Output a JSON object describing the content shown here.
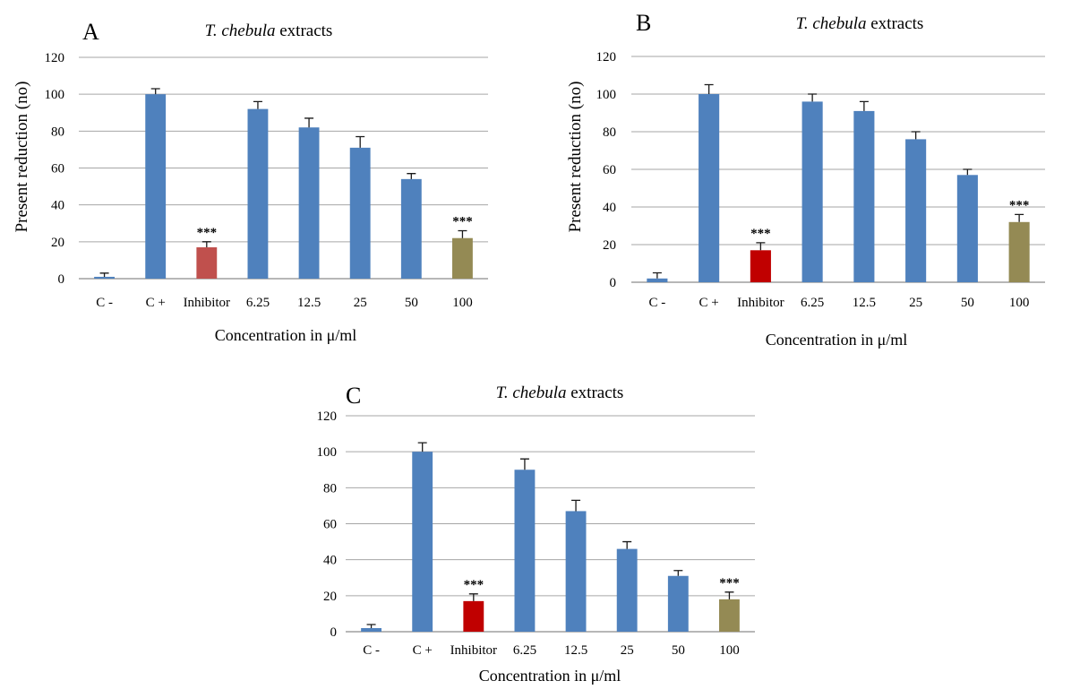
{
  "chart_data": [
    {
      "panel": "A",
      "type": "bar",
      "title_italic": "T. chebula",
      "title_rest": " extracts",
      "xlabel": "Concentration in μ/ml",
      "ylabel": "Present reduction (no)",
      "ylim": [
        0,
        120
      ],
      "yticks": [
        "0",
        "20",
        "40",
        "60",
        "80",
        "100",
        "120"
      ],
      "grid": true,
      "categories": [
        "C -",
        "C +",
        "Inhibitor",
        "6.25",
        "12.5",
        "25",
        "50",
        "100"
      ],
      "values": [
        1,
        100,
        17,
        92,
        82,
        71,
        54,
        22
      ],
      "errors": [
        2,
        3,
        3,
        4,
        5,
        6,
        3,
        4
      ],
      "annotations": [
        "",
        "",
        "***",
        "",
        "",
        "",
        "",
        "***"
      ],
      "colors": [
        "#4f81bd",
        "#4f81bd",
        "#c0504d",
        "#4f81bd",
        "#4f81bd",
        "#4f81bd",
        "#4f81bd",
        "#948a54"
      ]
    },
    {
      "panel": "B",
      "type": "bar",
      "title_italic": "T. chebula",
      "title_rest": " extracts",
      "xlabel": "Concentration in μ/ml",
      "ylabel": "Present reduction (no)",
      "ylim": [
        0,
        120
      ],
      "yticks": [
        "0",
        "20",
        "40",
        "60",
        "80",
        "100",
        "120"
      ],
      "grid": true,
      "categories": [
        "C -",
        "C +",
        "Inhibitor",
        "6.25",
        "12.5",
        "25",
        "50",
        "100"
      ],
      "values": [
        2,
        100,
        17,
        96,
        91,
        76,
        57,
        32
      ],
      "errors": [
        3,
        5,
        4,
        4,
        5,
        4,
        3,
        4
      ],
      "annotations": [
        "",
        "",
        "***",
        "",
        "",
        "",
        "",
        "***"
      ],
      "colors": [
        "#4f81bd",
        "#4f81bd",
        "#c00000",
        "#4f81bd",
        "#4f81bd",
        "#4f81bd",
        "#4f81bd",
        "#948a54"
      ]
    },
    {
      "panel": "C",
      "type": "bar",
      "title_italic": "T. chebula",
      "title_rest": " extracts",
      "xlabel": "Concentration in μ/ml",
      "ylabel": "",
      "ylim": [
        0,
        120
      ],
      "yticks": [
        "0",
        "20",
        "40",
        "60",
        "80",
        "100",
        "120"
      ],
      "grid": true,
      "categories": [
        "C -",
        "C +",
        "Inhibitor",
        "6.25",
        "12.5",
        "25",
        "50",
        "100"
      ],
      "values": [
        2,
        100,
        17,
        90,
        67,
        46,
        31,
        18
      ],
      "errors": [
        2,
        5,
        4,
        6,
        6,
        4,
        3,
        4
      ],
      "annotations": [
        "",
        "",
        "***",
        "",
        "",
        "",
        "",
        "***"
      ],
      "colors": [
        "#4f81bd",
        "#4f81bd",
        "#c00000",
        "#4f81bd",
        "#4f81bd",
        "#4f81bd",
        "#4f81bd",
        "#948a54"
      ]
    }
  ]
}
